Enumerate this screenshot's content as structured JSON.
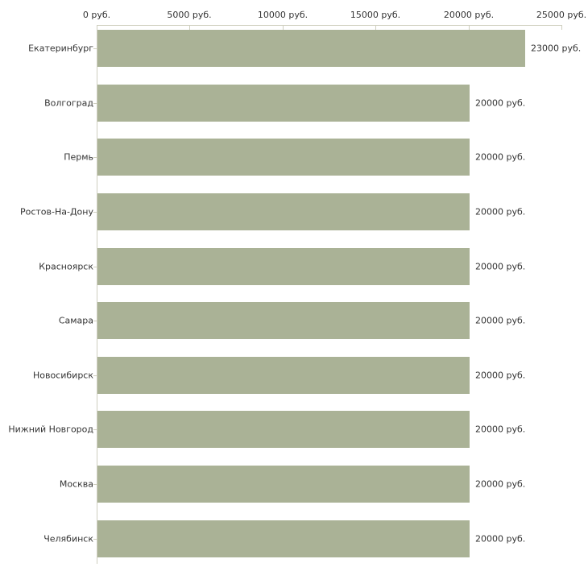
{
  "chart_data": {
    "type": "bar",
    "orientation": "horizontal",
    "title": "",
    "categories": [
      "Екатеринбург",
      "Волгоград",
      "Пермь",
      "Ростов-На-Дону",
      "Красноярск",
      "Самара",
      "Новосибирск",
      "Нижний Новгород",
      "Москва",
      "Челябинск"
    ],
    "values": [
      23000,
      20000,
      20000,
      20000,
      20000,
      20000,
      20000,
      20000,
      20000,
      20000
    ],
    "value_labels": [
      "23000 руб.",
      "20000 руб.",
      "20000 руб.",
      "20000 руб.",
      "20000 руб.",
      "20000 руб.",
      "20000 руб.",
      "20000 руб.",
      "20000 руб.",
      "20000 руб."
    ],
    "x_axis": {
      "position": "top",
      "min": 0,
      "max": 25000,
      "ticks": [
        0,
        5000,
        10000,
        15000,
        20000,
        25000
      ],
      "tick_labels": [
        "0 руб.",
        "5000 руб.",
        "10000 руб.",
        "15000 руб.",
        "20000 руб.",
        "25000 руб."
      ],
      "unit": "руб."
    },
    "ylabel": "",
    "xlabel": "",
    "grid": false,
    "legend": false,
    "colors": {
      "bar": "#aab296",
      "axis": "#cfcfbf",
      "text": "#333333",
      "background": "#ffffff"
    }
  }
}
